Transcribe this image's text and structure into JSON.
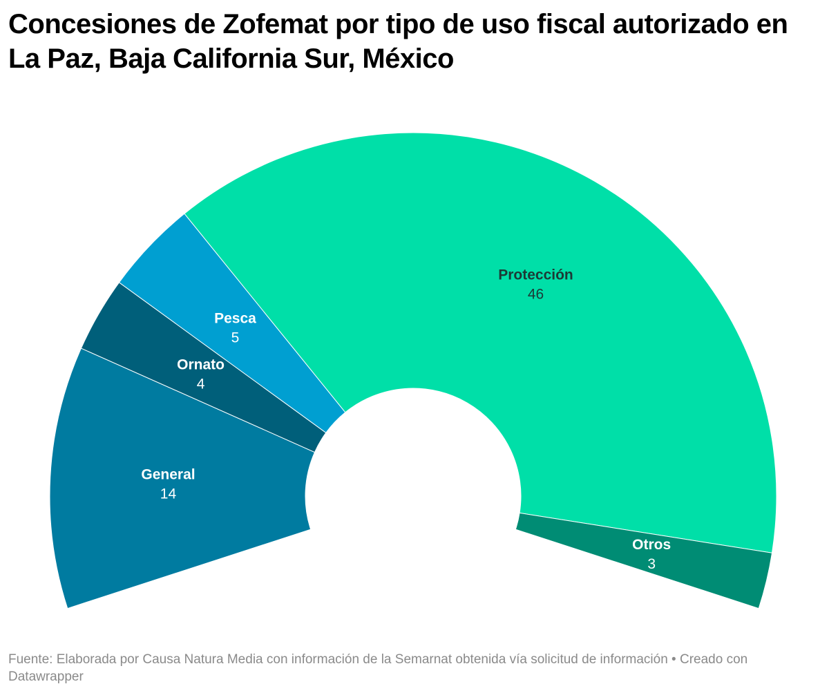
{
  "chart_data": {
    "type": "pie",
    "variant": "half-donut",
    "title": "Concesiones de Zofemat por tipo de uso fiscal autorizado en La Paz, Baja California Sur, México",
    "slices": [
      {
        "label": "General",
        "value": 14,
        "color": "#007ba0",
        "text_color": "#ffffff"
      },
      {
        "label": "Ornato",
        "value": 4,
        "color": "#005f7a",
        "text_color": "#ffffff"
      },
      {
        "label": "Pesca",
        "value": 5,
        "color": "#009fd1",
        "text_color": "#ffffff"
      },
      {
        "label": "Protección",
        "value": 46,
        "color": "#00dfa8",
        "text_color": "#1c3a36"
      },
      {
        "label": "Otros",
        "value": 3,
        "color": "#008c74",
        "text_color": "#ffffff"
      }
    ],
    "source": "Fuente: Elaborada por Causa Natura Media con información de la Semarnat obtenida vía solicitud de información • Creado con Datawrapper"
  }
}
